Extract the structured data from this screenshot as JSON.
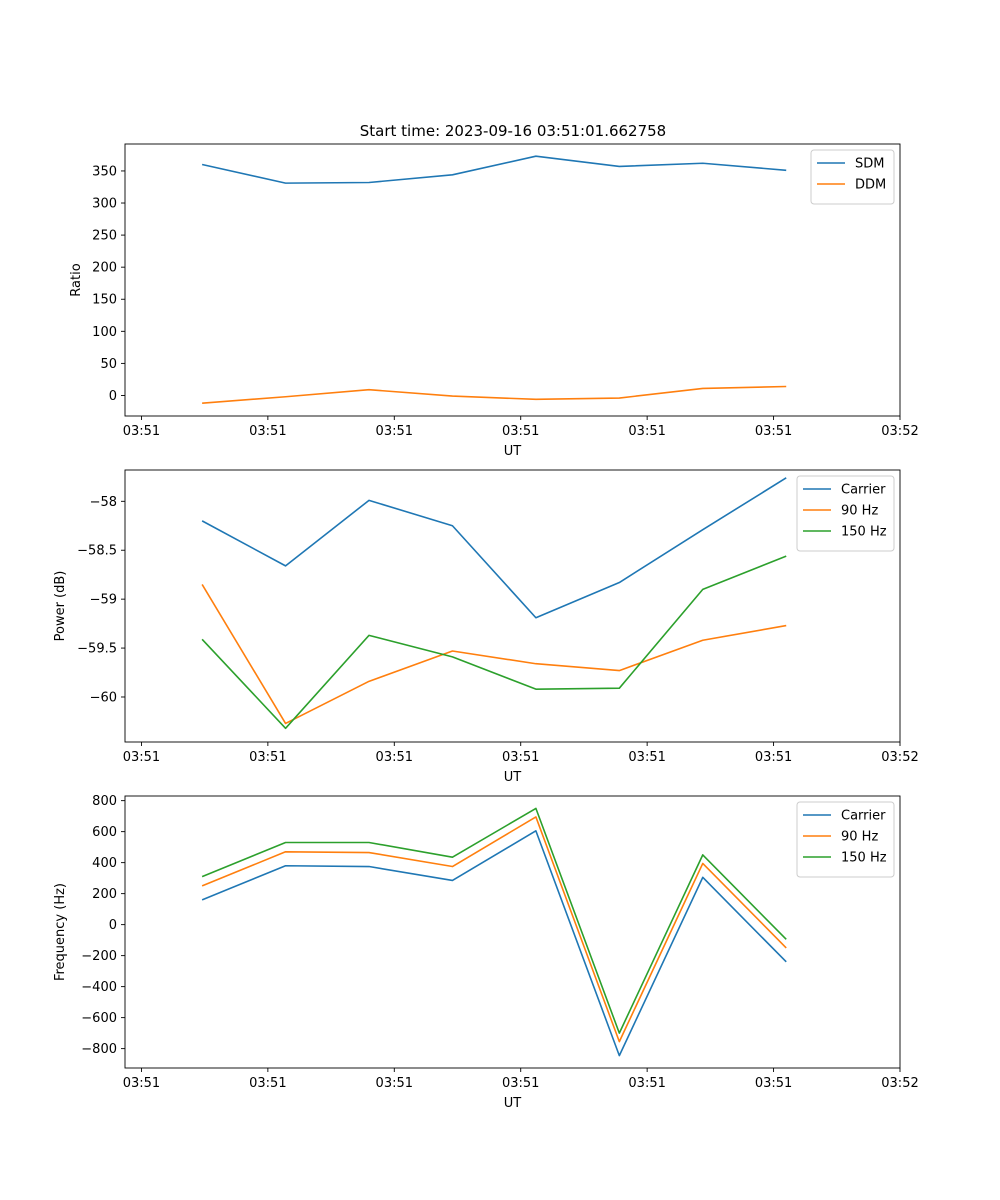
{
  "figure_title": "Start time: 2023-09-16 03:51:01.662758",
  "chart_data": [
    {
      "type": "line",
      "ylabel": "Ratio",
      "xlabel": "UT",
      "x_tick_labels": [
        "03:51",
        "03:51",
        "03:51",
        "03:51",
        "03:51",
        "03:51",
        "03:52"
      ],
      "x_tick_values": [
        0,
        1,
        2,
        3,
        4,
        5,
        6
      ],
      "x": [
        0.48,
        1.14,
        1.8,
        2.46,
        3.12,
        3.78,
        4.44,
        5.1
      ],
      "xlim": [
        -0.13,
        6.0
      ],
      "ylim": [
        -32,
        392
      ],
      "y_ticks": [
        0,
        50,
        100,
        150,
        200,
        250,
        300,
        350
      ],
      "legend_location": "upper right",
      "series": [
        {
          "name": "SDM",
          "color": "#1f77b4",
          "values": [
            360,
            331,
            332,
            344,
            373,
            357,
            362,
            351
          ]
        },
        {
          "name": "DDM",
          "color": "#ff7f0e",
          "values": [
            -12,
            -2,
            9,
            -1,
            -6,
            -4,
            11,
            14
          ]
        }
      ]
    },
    {
      "type": "line",
      "ylabel": "Power (dB)",
      "xlabel": "UT",
      "x_tick_labels": [
        "03:51",
        "03:51",
        "03:51",
        "03:51",
        "03:51",
        "03:51",
        "03:52"
      ],
      "x_tick_values": [
        0,
        1,
        2,
        3,
        4,
        5,
        6
      ],
      "x": [
        0.48,
        1.14,
        1.8,
        2.46,
        3.12,
        3.78,
        4.44,
        5.1
      ],
      "xlim": [
        -0.13,
        6.0
      ],
      "ylim": [
        -60.46,
        -57.68
      ],
      "y_ticks": [
        -60.0,
        -59.5,
        -59.0,
        -58.5,
        -58.0
      ],
      "legend_location": "upper right",
      "series": [
        {
          "name": "Carrier",
          "color": "#1f77b4",
          "values": [
            -58.2,
            -58.66,
            -57.99,
            -58.25,
            -59.19,
            -58.83,
            -58.29,
            -57.76
          ]
        },
        {
          "name": "90 Hz",
          "color": "#ff7f0e",
          "values": [
            -58.85,
            -60.27,
            -59.84,
            -59.53,
            -59.66,
            -59.73,
            -59.42,
            -59.27
          ]
        },
        {
          "name": "150 Hz",
          "color": "#2ca02c",
          "values": [
            -59.41,
            -60.32,
            -59.37,
            -59.59,
            -59.92,
            -59.91,
            -58.9,
            -58.56
          ]
        }
      ]
    },
    {
      "type": "line",
      "ylabel": "Frequency (Hz)",
      "xlabel": "UT",
      "x_tick_labels": [
        "03:51",
        "03:51",
        "03:51",
        "03:51",
        "03:51",
        "03:51",
        "03:52"
      ],
      "x_tick_values": [
        0,
        1,
        2,
        3,
        4,
        5,
        6
      ],
      "x": [
        0.48,
        1.14,
        1.8,
        2.46,
        3.12,
        3.78,
        4.44,
        5.1
      ],
      "xlim": [
        -0.13,
        6.0
      ],
      "ylim": [
        -925,
        830
      ],
      "y_ticks": [
        -800,
        -600,
        -400,
        -200,
        0,
        200,
        400,
        600,
        800
      ],
      "legend_location": "upper right",
      "series": [
        {
          "name": "Carrier",
          "color": "#1f77b4",
          "values": [
            160,
            380,
            375,
            285,
            605,
            -845,
            305,
            -240
          ]
        },
        {
          "name": "90 Hz",
          "color": "#ff7f0e",
          "values": [
            250,
            470,
            465,
            375,
            695,
            -755,
            395,
            -150
          ]
        },
        {
          "name": "150 Hz",
          "color": "#2ca02c",
          "values": [
            310,
            530,
            530,
            435,
            750,
            -700,
            450,
            -95
          ]
        }
      ]
    }
  ]
}
